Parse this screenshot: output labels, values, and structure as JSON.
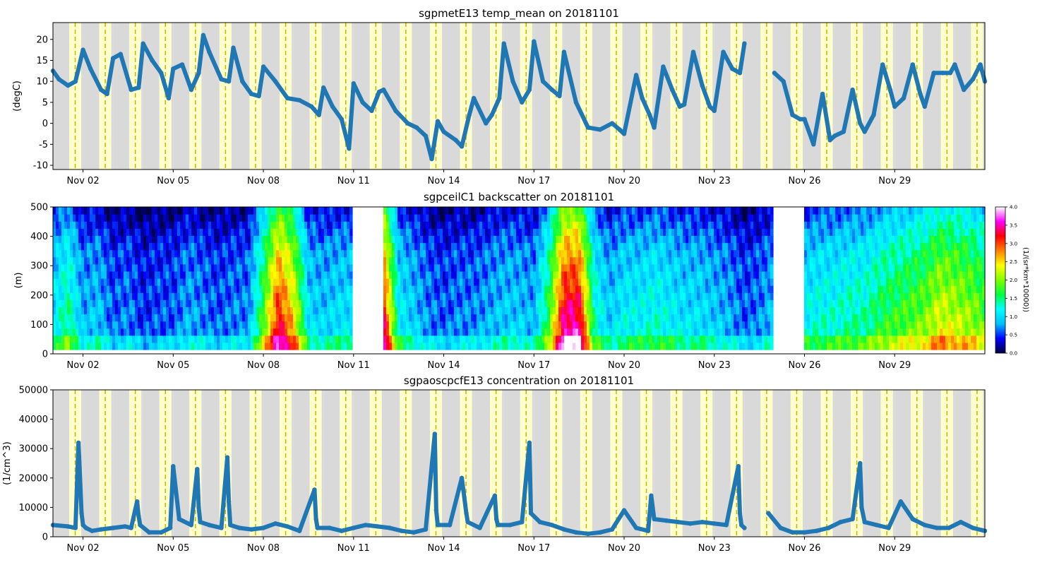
{
  "colors": {
    "night": "#d9d9d9",
    "day": "#ffffcc",
    "noon_line": "#c8b400",
    "series": "#1f77b4",
    "gap": "#ffffff"
  },
  "chart_data": [
    {
      "id": "temp",
      "type": "scatter",
      "title": "sgpmetE13 temp_mean on 20181101",
      "xlabel": "",
      "ylabel": "(degC)",
      "xlim": [
        "2018-11-01T00:00",
        "2018-12-02T00:00"
      ],
      "ylim": [
        -11,
        24
      ],
      "yticks": [
        -10,
        -5,
        0,
        5,
        10,
        15,
        20
      ],
      "xtick_labels": [
        "Nov 02",
        "Nov 05",
        "Nov 08",
        "Nov 11",
        "Nov 14",
        "Nov 17",
        "Nov 20",
        "Nov 23",
        "Nov 26",
        "Nov 29"
      ],
      "series": [
        {
          "x_day_of_month": [
            1.0,
            1.2,
            1.5,
            1.75,
            2.0,
            2.25,
            2.6,
            2.8,
            3.0,
            3.25,
            3.6,
            3.85,
            4.0,
            4.3,
            4.6,
            4.85,
            5.0,
            5.3,
            5.6,
            5.85,
            6.0,
            6.2,
            6.6,
            6.85,
            7.0,
            7.3,
            7.6,
            7.85,
            8.0,
            8.4,
            8.8,
            9.2,
            9.6,
            9.85,
            10.0,
            10.3,
            10.6,
            10.85,
            11.0,
            11.3,
            11.6,
            11.85,
            12.0,
            12.4,
            12.8,
            13.1,
            13.4,
            13.6,
            13.8,
            14.0,
            14.4,
            14.6,
            14.85,
            15.0,
            15.4,
            15.6,
            15.85,
            16.0,
            16.3,
            16.6,
            16.85,
            17.0,
            17.3,
            17.6,
            17.85,
            18.0,
            18.4,
            18.8,
            19.2,
            19.6,
            19.85,
            20.0,
            20.4,
            20.6,
            20.85,
            21.0,
            21.3,
            21.6,
            21.85,
            22.0,
            22.3,
            22.6,
            22.85,
            23.0,
            23.3,
            23.6,
            23.85,
            24.0,
            null,
            24.8,
            25.0,
            25.3,
            25.6,
            25.85,
            26.0,
            26.3,
            26.6,
            26.85,
            27.0,
            27.3,
            27.6,
            27.85,
            28.0,
            28.3,
            28.6,
            28.85,
            29.0,
            29.3,
            29.6,
            29.85,
            30.0,
            30.3,
            30.6,
            30.85,
            31.0,
            31.3,
            31.6,
            31.85,
            32.0
          ],
          "y": [
            12.5,
            10.5,
            9.0,
            10.0,
            17.5,
            13.0,
            8.0,
            7.0,
            15.5,
            16.5,
            8.0,
            8.5,
            19.0,
            15.0,
            12.0,
            6.0,
            13.0,
            14.0,
            8.0,
            12.0,
            21.0,
            17.0,
            10.5,
            10.0,
            18.0,
            10.0,
            7.0,
            6.5,
            13.5,
            10.0,
            6.0,
            5.5,
            4.0,
            2.0,
            8.5,
            4.0,
            1.0,
            -6.0,
            9.5,
            5.0,
            3.0,
            7.5,
            8.0,
            3.0,
            0.0,
            -1.0,
            -3.0,
            -8.5,
            0.5,
            -2.0,
            -4.0,
            -5.5,
            2.0,
            6.0,
            0.0,
            2.0,
            6.0,
            19.0,
            10.0,
            5.0,
            8.0,
            19.5,
            10.0,
            8.0,
            6.5,
            17.0,
            5.0,
            -1.0,
            -1.5,
            0.0,
            -1.5,
            -2.5,
            11.5,
            6.0,
            2.0,
            -1.0,
            13.5,
            8.0,
            4.0,
            4.5,
            17.0,
            9.0,
            4.0,
            3.0,
            17.0,
            13.0,
            12.0,
            19.0,
            14.0,
            null,
            12.0,
            10.0,
            2.0,
            1.0,
            1.0,
            -5.0,
            7.0,
            -4.0,
            -3.0,
            -2.0,
            8.0,
            0.0,
            -2.0,
            2.0,
            14.0,
            8.0,
            4.0,
            6.0,
            14.0,
            7.0,
            4.0,
            12.0,
            12.0,
            12.0,
            14.0,
            8.0,
            10.5,
            14.0,
            10.0
          ]
        }
      ]
    },
    {
      "id": "backscatter",
      "type": "heatmap",
      "title": "sgpceilC1 backscatter on 20181101",
      "xlabel": "",
      "ylabel": "(m)",
      "xlim": [
        "2018-11-01T00:00",
        "2018-12-02T00:00"
      ],
      "ylim": [
        0,
        500
      ],
      "yticks": [
        0,
        100,
        200,
        300,
        400,
        500
      ],
      "xtick_labels": [
        "Nov 02",
        "Nov 05",
        "Nov 08",
        "Nov 11",
        "Nov 14",
        "Nov 17",
        "Nov 20",
        "Nov 23",
        "Nov 26",
        "Nov 29"
      ],
      "colorbar": {
        "label": "(1/(sr*km*10000))",
        "range": [
          0.0,
          4.0
        ],
        "ticks": [
          "0.0",
          "0.5",
          "1.0",
          "1.5",
          "2.0",
          "2.5",
          "3.0",
          "3.5",
          "4.0"
        ],
        "colormap": [
          "#000040",
          "#0000ff",
          "#00bfff",
          "#00ffff",
          "#00ff40",
          "#80ff00",
          "#ffff00",
          "#ff8000",
          "#ff0000",
          "#ff00ff",
          "#ffffff"
        ]
      },
      "data_gaps_day_of_month": [
        [
          11.0,
          11.95
        ],
        [
          24.95,
          25.95
        ]
      ],
      "level_by_day_of_month": {
        "day": [
          1.0,
          1.5,
          2.0,
          2.5,
          3.0,
          3.5,
          4.0,
          4.5,
          5.0,
          5.5,
          6.0,
          6.5,
          7.0,
          7.5,
          8.0,
          8.5,
          9.0,
          9.5,
          10.0,
          10.5,
          11.0,
          12.0,
          12.5,
          13.0,
          13.5,
          14.0,
          14.5,
          15.0,
          15.5,
          16.0,
          16.5,
          17.0,
          17.5,
          18.0,
          18.5,
          19.0,
          19.5,
          20.0,
          20.5,
          21.0,
          21.5,
          22.0,
          22.5,
          23.0,
          23.5,
          24.0,
          24.5,
          25.0,
          26.0,
          26.5,
          27.0,
          27.5,
          28.0,
          28.5,
          29.0,
          29.5,
          30.0,
          30.5,
          31.0,
          31.5,
          32.0
        ],
        "value": [
          0.9,
          1.3,
          0.7,
          0.8,
          0.5,
          0.6,
          0.4,
          0.5,
          0.5,
          0.7,
          0.6,
          0.5,
          0.6,
          0.6,
          1.6,
          2.8,
          2.2,
          0.9,
          0.8,
          0.9,
          0.9,
          2.9,
          1.0,
          0.8,
          0.6,
          0.5,
          0.6,
          0.6,
          0.7,
          0.8,
          0.8,
          0.7,
          1.5,
          3.0,
          3.0,
          1.2,
          0.8,
          1.0,
          1.0,
          1.1,
          1.0,
          0.9,
          0.9,
          0.8,
          0.7,
          0.5,
          0.6,
          0.8,
          1.0,
          1.1,
          1.1,
          1.2,
          1.2,
          1.4,
          1.5,
          1.6,
          1.7,
          2.0,
          1.9,
          1.8,
          1.6
        ]
      }
    },
    {
      "id": "concentration",
      "type": "scatter",
      "title": "sgpaoscpcfE13 concentration on 20181101",
      "xlabel": "",
      "ylabel": "(1/cm^3)",
      "xlim": [
        "2018-11-01T00:00",
        "2018-12-02T00:00"
      ],
      "ylim": [
        0,
        50000
      ],
      "yticks": [
        0,
        10000,
        20000,
        30000,
        40000,
        50000
      ],
      "xtick_labels": [
        "Nov 02",
        "Nov 05",
        "Nov 08",
        "Nov 11",
        "Nov 14",
        "Nov 17",
        "Nov 20",
        "Nov 23",
        "Nov 26",
        "Nov 29"
      ],
      "series": [
        {
          "x_day_of_month": [
            1.0,
            1.5,
            1.75,
            1.85,
            1.95,
            2.0,
            2.1,
            2.3,
            2.6,
            3.0,
            3.4,
            3.6,
            3.8,
            3.85,
            3.9,
            4.2,
            4.6,
            4.9,
            5.0,
            5.2,
            5.6,
            5.8,
            5.85,
            5.9,
            6.2,
            6.6,
            6.8,
            6.85,
            6.9,
            7.2,
            7.6,
            8.0,
            8.4,
            8.8,
            9.2,
            9.7,
            9.75,
            9.8,
            10.2,
            10.6,
            11.0,
            11.4,
            11.8,
            12.2,
            12.6,
            13.0,
            13.4,
            13.7,
            13.75,
            13.8,
            14.2,
            14.6,
            14.75,
            14.8,
            15.2,
            15.7,
            15.75,
            15.8,
            16.2,
            16.6,
            16.85,
            16.9,
            17.2,
            17.6,
            18.0,
            18.4,
            18.8,
            19.2,
            19.6,
            20.0,
            20.4,
            20.8,
            20.9,
            21.0,
            21.4,
            21.8,
            22.2,
            22.6,
            23.0,
            23.4,
            23.8,
            23.85,
            23.9,
            24.0,
            null,
            24.8,
            25.2,
            25.6,
            26.0,
            26.4,
            26.8,
            27.2,
            27.6,
            27.85,
            27.9,
            28.0,
            28.4,
            28.8,
            29.2,
            29.6,
            30.0,
            30.4,
            30.8,
            31.2,
            31.6,
            32.0
          ],
          "y": [
            4000,
            3500,
            3000,
            32000,
            8000,
            4000,
            3000,
            2000,
            2500,
            3000,
            3500,
            3000,
            12000,
            7000,
            4000,
            1500,
            1500,
            3000,
            24000,
            6000,
            4000,
            23000,
            10000,
            5000,
            4000,
            3000,
            27000,
            12000,
            4000,
            3000,
            2500,
            3000,
            4500,
            3500,
            2000,
            16000,
            6000,
            3000,
            3000,
            2000,
            3000,
            4000,
            3500,
            3000,
            2000,
            1500,
            2500,
            35000,
            9000,
            4000,
            4000,
            20000,
            8000,
            5000,
            3000,
            14000,
            6000,
            4000,
            4000,
            5000,
            32000,
            8000,
            5000,
            4000,
            2500,
            1500,
            1000,
            1500,
            2500,
            9000,
            3000,
            2000,
            14000,
            6000,
            5500,
            5000,
            4500,
            5000,
            4500,
            4000,
            24000,
            8000,
            4000,
            3000,
            null,
            8000,
            3000,
            1500,
            1500,
            2000,
            3000,
            5000,
            6000,
            25000,
            10000,
            5000,
            4000,
            3000,
            12000,
            6000,
            4000,
            3000,
            3000,
            5000,
            3000,
            2000
          ]
        }
      ]
    }
  ]
}
